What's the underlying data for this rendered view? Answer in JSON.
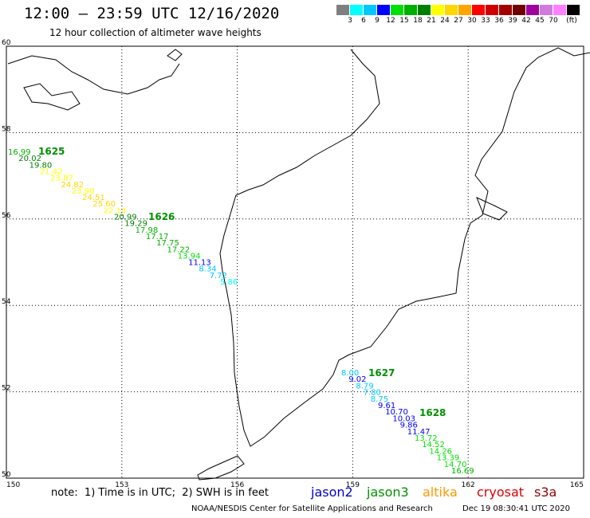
{
  "header": {
    "title": "12:00 – 23:59 UTC 12/16/2020",
    "subtitle": "12 hour collection of altimeter wave heights"
  },
  "legend": {
    "unit": "(ft)",
    "colors": [
      "#7f7f7f",
      "#00ffff",
      "#00c8ff",
      "#0000ff",
      "#00e000",
      "#00b000",
      "#008000",
      "#ffff00",
      "#ffd700",
      "#ffa500",
      "#ff0000",
      "#d00000",
      "#a00000",
      "#700000",
      "#a000a0",
      "#d07ae0",
      "#ff80ff",
      "#000000"
    ],
    "labels": [
      "3",
      "6",
      "9",
      "12",
      "15",
      "18",
      "21",
      "24",
      "27",
      "30",
      "33",
      "36",
      "39",
      "42",
      "45",
      "70"
    ]
  },
  "map": {
    "lon_range": [
      150,
      165
    ],
    "lat_range": [
      50,
      60
    ],
    "lon_ticks": [
      "150",
      "153",
      "156",
      "159",
      "162",
      "165"
    ],
    "lat_ticks": [
      "50",
      "52",
      "54",
      "56",
      "58",
      "60"
    ],
    "grid": true,
    "track_labels": [
      "1625",
      "1626",
      "1627",
      "1628"
    ],
    "observations": [
      {
        "v": "16.99",
        "c": "#00b000"
      },
      {
        "v": "20.02",
        "c": "#008000"
      },
      {
        "v": "19.80",
        "c": "#008000"
      },
      {
        "v": "21.42",
        "c": "#ffff00"
      },
      {
        "v": "23.87",
        "c": "#ffff00"
      },
      {
        "v": "24.82",
        "c": "#ffd700"
      },
      {
        "v": "23.90",
        "c": "#ffff00"
      },
      {
        "v": "24.51",
        "c": "#ffd700"
      },
      {
        "v": "25.60",
        "c": "#ffd700"
      },
      {
        "v": "22.14",
        "c": "#ffff00"
      },
      {
        "v": "20.99",
        "c": "#008000"
      },
      {
        "v": "19.29",
        "c": "#008000"
      },
      {
        "v": "17.98",
        "c": "#00b000"
      },
      {
        "v": "17.17",
        "c": "#00b000"
      },
      {
        "v": "17.75",
        "c": "#00b000"
      },
      {
        "v": "17.22",
        "c": "#00b000"
      },
      {
        "v": "13.94",
        "c": "#00e000"
      },
      {
        "v": "11.13",
        "c": "#0000ff"
      },
      {
        "v": "8.34",
        "c": "#00c8ff"
      },
      {
        "v": "7.72",
        "c": "#00c8ff"
      },
      {
        "v": "5.86",
        "c": "#00ffff"
      },
      {
        "v": "8.00",
        "c": "#00c8ff"
      },
      {
        "v": "9.02",
        "c": "#0000ff"
      },
      {
        "v": "8.79",
        "c": "#00c8ff"
      },
      {
        "v": "7.80",
        "c": "#00c8ff"
      },
      {
        "v": "8.75",
        "c": "#00c8ff"
      },
      {
        "v": "9.61",
        "c": "#0000ff"
      },
      {
        "v": "10.70",
        "c": "#0000ff"
      },
      {
        "v": "10.03",
        "c": "#0000ff"
      },
      {
        "v": "9.86",
        "c": "#0000ff"
      },
      {
        "v": "11.47",
        "c": "#0000ff"
      },
      {
        "v": "13.72",
        "c": "#00e000"
      },
      {
        "v": "14.52",
        "c": "#00e000"
      },
      {
        "v": "14.26",
        "c": "#00e000"
      },
      {
        "v": "13.39",
        "c": "#00e000"
      },
      {
        "v": "14.70",
        "c": "#00e000"
      },
      {
        "v": "16.69",
        "c": "#00b000"
      }
    ]
  },
  "footer": {
    "note": "note:  1) Time is in UTC;  2) SWH is in feet",
    "satellites": [
      {
        "name": "jason2",
        "color": "#0000cc"
      },
      {
        "name": "jason3",
        "color": "#009000"
      },
      {
        "name": "altika",
        "color": "#ff9900"
      },
      {
        "name": "cryosat",
        "color": "#dd0000"
      },
      {
        "name": "s3a",
        "color": "#990000"
      }
    ],
    "credit": "NOAA/NESDIS Center for Satellite Applications and Research",
    "timestamp": "Dec 19 08:30:41 UTC 2020"
  }
}
